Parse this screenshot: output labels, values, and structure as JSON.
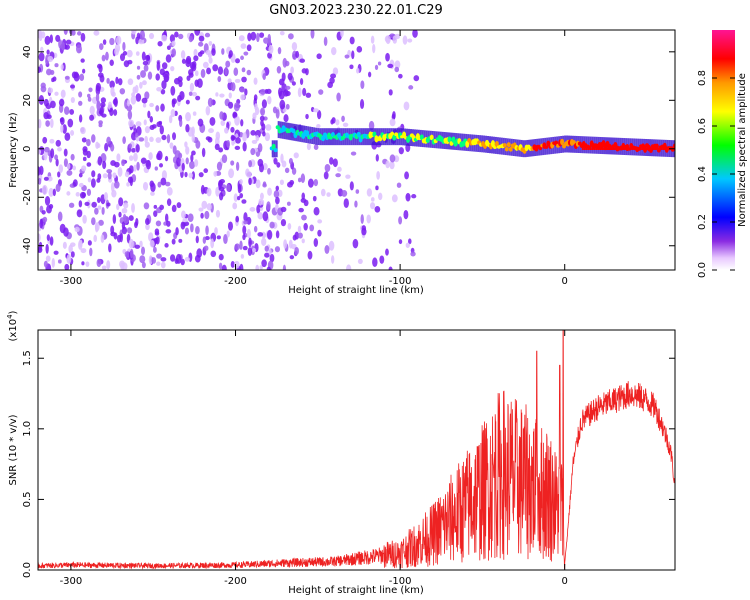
{
  "title": "GN03.2023.230.22.01.C29",
  "colors": {
    "snr_line": "#ee2222",
    "axes": "#000000",
    "background": "#ffffff"
  },
  "chart_data": [
    {
      "type": "heatmap",
      "xlabel": "Height of straight line (km)",
      "ylabel": "Frequency (Hz)",
      "xlim": [
        -320,
        67
      ],
      "ylim": [
        -50,
        49
      ],
      "xticks": [
        -300,
        -200,
        -100,
        0
      ],
      "yticks": [
        -40,
        -20,
        0,
        20,
        40
      ],
      "xtick_labels": [
        "-300",
        "-200",
        "-100",
        "0"
      ],
      "ytick_labels": [
        "-40",
        "-20",
        "0",
        "20",
        "40"
      ],
      "colorbar": {
        "label": "Normalized spectral amplitude",
        "range": [
          0,
          1
        ],
        "ticks": [
          0,
          0.2,
          0.4,
          0.6,
          0.8
        ],
        "tick_labels": [
          "0.0",
          "0.2",
          "0.4",
          "0.6",
          "0.8"
        ],
        "colormap": "rainbow (white→violet→blue→cyan→green→yellow→orange→red→magenta)"
      },
      "features": {
        "noise_region_km": [
          -320,
          -100
        ],
        "signal_band_center_hz": [
          [
            -175,
            8
          ],
          [
            -150,
            5
          ],
          [
            -100,
            5
          ],
          [
            -50,
            2
          ],
          [
            -25,
            0
          ],
          [
            0,
            2
          ],
          [
            67,
            0
          ]
        ],
        "signal_band_halfwidth_hz": 3.5
      }
    },
    {
      "type": "line",
      "xlabel": "Height of straight line (km)",
      "ylabel": "SNR (10 * v/v)",
      "y_multiplier_label": "(x10",
      "y_multiplier_exponent": "4",
      "xlim": [
        -320,
        67
      ],
      "ylim": [
        0,
        17000
      ],
      "xticks": [
        -300,
        -200,
        -100,
        0
      ],
      "yticks": [
        0,
        5000,
        10000,
        15000
      ],
      "xtick_labels": [
        "-300",
        "-200",
        "-100",
        "0"
      ],
      "ytick_labels": [
        "0.0",
        "0.5",
        "1.0",
        "1.5"
      ],
      "series": [
        {
          "x": [
            -320,
            -300,
            -250,
            -200,
            -170,
            -140,
            -120,
            -100,
            -90,
            -80,
            -70,
            -60,
            -50,
            -42,
            -38,
            -30,
            -20,
            -15,
            -10,
            -5,
            -2,
            0,
            2,
            5,
            10,
            20,
            30,
            40,
            45,
            50,
            55,
            60,
            63,
            65,
            67
          ],
          "y": [
            300,
            350,
            300,
            350,
            500,
            600,
            900,
            1200,
            1800,
            2500,
            3500,
            4500,
            5500,
            6500,
            7000,
            6500,
            6000,
            5500,
            5500,
            4500,
            5000,
            500,
            3000,
            7500,
            10500,
            11500,
            12000,
            12500,
            12300,
            12000,
            11500,
            10000,
            9000,
            8000,
            5800
          ],
          "spikes": [
            [
              -42,
              10500
            ],
            [
              -17,
              15500
            ],
            [
              -1,
              17000
            ],
            [
              -3,
              14500
            ],
            [
              -35,
              9000
            ],
            [
              -25,
              10000
            ]
          ]
        }
      ]
    }
  ]
}
